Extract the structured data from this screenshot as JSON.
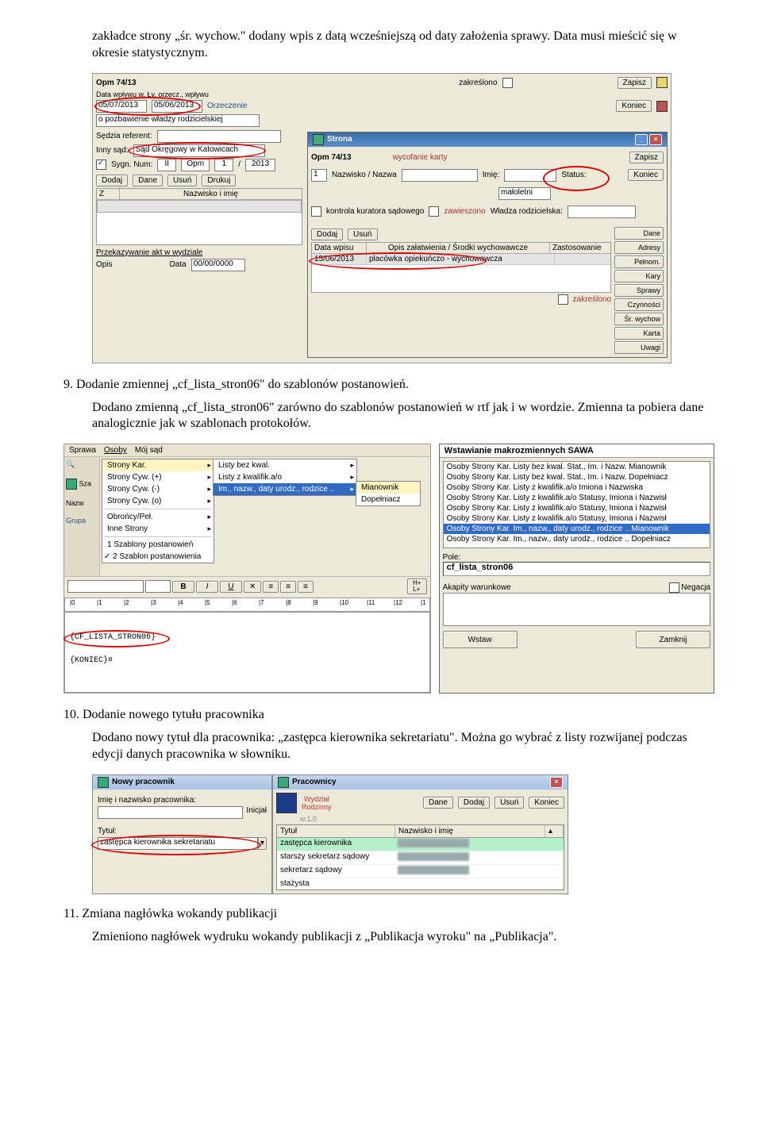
{
  "doc": {
    "para0": "zakładce strony „śr. wychow.\" dodany wpis z datą wcześniejszą od daty założenia sprawy. Data musi mieścić się w okresie statystycznym.",
    "h9": "9. Dodanie zmiennej „cf_lista_stron06\" do szablonów postanowień.",
    "para9": "Dodano zmienną „cf_lista_stron06\" zarówno do szablonów postanowień w rtf jak i w wordzie. Zmienna ta pobiera dane analogicznie jak w szablonach protokołów.",
    "h10": "10. Dodanie nowego tytułu pracownika",
    "para10": "Dodano nowy tytuł dla pracownika: „zastępca kierownika sekretariatu\". Można go wybrać z listy rozwijanej podczas edycji danych pracownika w słowniku.",
    "h11": "11. Zmiana nagłówka wokandy publikacji",
    "para11": "Zmieniono nagłówek wydruku wokandy publikacji z „Publikacja wyroku\" na „Publikacja\"."
  },
  "ss1": {
    "case_no": "Opm 74/13",
    "zakreslono": "zakreślono",
    "dates_label": "Data wpływu w. Ły. orzecz., wpływu",
    "date1": "05/07/2013",
    "date2": "05/06/2013",
    "orzeczenie": "Orzeczenie",
    "opozbaw": "o pozbawienie władzy rodzicielskiej",
    "sedzia": "Sędzia referent:",
    "inny": "Inny sąd:",
    "sad": "Sąd Okręgowy w Katowicach",
    "sygn": "Sygn. Num:",
    "sygn_a": "II",
    "sygn_b": "Opm",
    "sygn_c": "1",
    "sygn_d": "2013",
    "b_dodaj": "Dodaj",
    "b_dane": "Dane",
    "b_usun": "Usuń",
    "b_drukuj": "Drukuj",
    "col_z": "Z",
    "col_name": "Nazwisko i imię",
    "przekaz": "Przekazywanie akt w wydziale",
    "opis": "Opis",
    "data_lbl": "Data",
    "data_val": "00/00/0000",
    "sub_title": "Strona",
    "sub_case": "Opm 74/13",
    "wyc": "wycofanie karty",
    "nazw": "Nazwisko / Nazwa",
    "imie": "Imię:",
    "status": "Status:",
    "maloletni": "małoletni",
    "kontrola": "kontrola kuratora sądowego",
    "zawieszono": "zawieszono",
    "wladza": "Władza rodzicielska:",
    "data_wpisu": "Data wpisu",
    "opis_zal": "Opis załatwienia / Środki wychowawcze",
    "zastos": "Zastosowanie",
    "row_date": "15/06/2013",
    "row_text": "placówka opiekuńczo - wychowawcza",
    "zakr2": "zakreślono",
    "btns": {
      "zapisz": "Zapisz",
      "koniec": "Koniec",
      "dane": "Dane",
      "adresy": "Adresy",
      "pelnom": "Pełnom.",
      "kary": "Kary",
      "sprawy": "Sprawy",
      "czynnosci": "Czynności",
      "srwychow": "Śr. wychow",
      "karta": "Karta",
      "uwagi": "Uwagi"
    }
  },
  "ss2": {
    "tabs": {
      "sprawa": "Sprawa",
      "osoby": "Osoby",
      "moj": "Mój sąd"
    },
    "side_sza": "Sza",
    "side_nazw": "Nazw",
    "side_grupa": "Grupa",
    "menu1": [
      "Strony Kar.",
      "Strony Cyw. (+)",
      "Strony Cyw. (-)",
      "Strony Cyw. (o)",
      "Obrońcy/Peł.",
      "Inne Strony",
      "1 Szablony postanowień",
      "2 Szablon postanowienia"
    ],
    "menu1_checked": "2 Szablon postanowienia",
    "menu1_sel": "Strony Kar.",
    "sub1": [
      "Listy bez kwal.",
      "Listy z kwalifik.a/o",
      "Im., nazw., daty urodz., rodzice .."
    ],
    "sub1_sel": "Im., nazw., daty urodz., rodzice ..",
    "sub2": [
      "Mianownik",
      "Dopełniacz"
    ],
    "sub2_sel": "Mianownik",
    "toolbar_fmt": [
      "B",
      "I",
      "U"
    ],
    "toolbar_hl": "H+\nL+",
    "ruler_ticks": [
      "0",
      "1",
      "2",
      "3",
      "4",
      "5",
      "6",
      "7",
      "8",
      "9",
      "10",
      "11",
      "12",
      "1"
    ],
    "doc_line1": "{CF_LISTA_STRON06}",
    "doc_line2": "{KONIEC}¤",
    "right_title": "Wstawianie makrozmiennych SAWA",
    "right_list": [
      "Osoby Strony Kar. Listy bez kwal. Stat., Im. i Nazw. Mianownik",
      "Osoby Strony Kar. Listy bez kwal. Stat., Im. i Nazw. Dopełniacz",
      "Osoby Strony Kar. Listy z kwalifik.a/o Imiona i Nazwiska",
      "Osoby Strony Kar. Listy z kwalifik.a/o Statusy, Imiona i Nazwisł",
      "Osoby Strony Kar. Listy z kwalifik.a/o Statusy, Imiona i Nazwisł",
      "Osoby Strony Kar. Listy z kwalifik.a/o Statusy, Imiona i Nazwisł",
      "Osoby Strony Kar. Im., nazw., daty urodz., rodzice .. Mianownik",
      "Osoby Strony Kar. Im., nazw., daty urodz., rodzice .. Dopełniacz"
    ],
    "right_sel_idx": 6,
    "pole_lbl": "Pole:",
    "pole_val": "cf_lista_stron06",
    "akapity": "Akapity warunkowe",
    "negacja": "Negacja",
    "b_wstaw": "Wstaw",
    "b_zamknij": "Zamknij"
  },
  "ss3": {
    "dlg1_title": "Nowy pracownik",
    "imie_lbl": "Imię i nazwisko pracownika:",
    "inicjal": "Inicjał",
    "tytul_lbl": "Tytuł:",
    "tytul_val": "zastępca kierownika sekretariatu",
    "dlg2_title": "Pracownicy",
    "wydzial": "Wydział\nRodzinny",
    "ver": "w.1.0",
    "col_tytul": "Tytuł",
    "col_nazw": "Nazwisko i imię",
    "rows": [
      "zastępca kierownika",
      "starszy sekretarz sądowy",
      "sekretarz sądowy",
      "stażysta"
    ],
    "b_dane": "Dane",
    "b_dodaj": "Dodaj",
    "b_usun": "Usuń",
    "b_koniec": "Koniec"
  },
  "colors": {
    "red_circle": "#d00",
    "menu_highlight": "#316ac5",
    "menu_sel": "#fff5c2",
    "row_highlight": "#b4f0c8"
  }
}
